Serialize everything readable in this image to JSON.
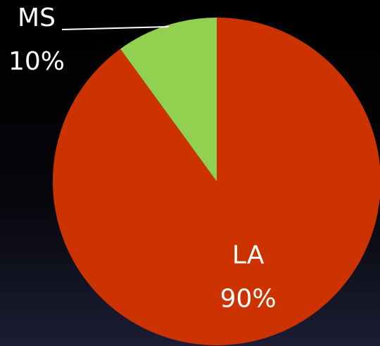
{
  "chart_data": {
    "type": "pie",
    "categories": [
      "LA",
      "MS"
    ],
    "values": [
      90,
      10
    ],
    "value_labels": [
      "90%",
      "10%"
    ],
    "colors": [
      "#cc3300",
      "#92d050"
    ]
  }
}
